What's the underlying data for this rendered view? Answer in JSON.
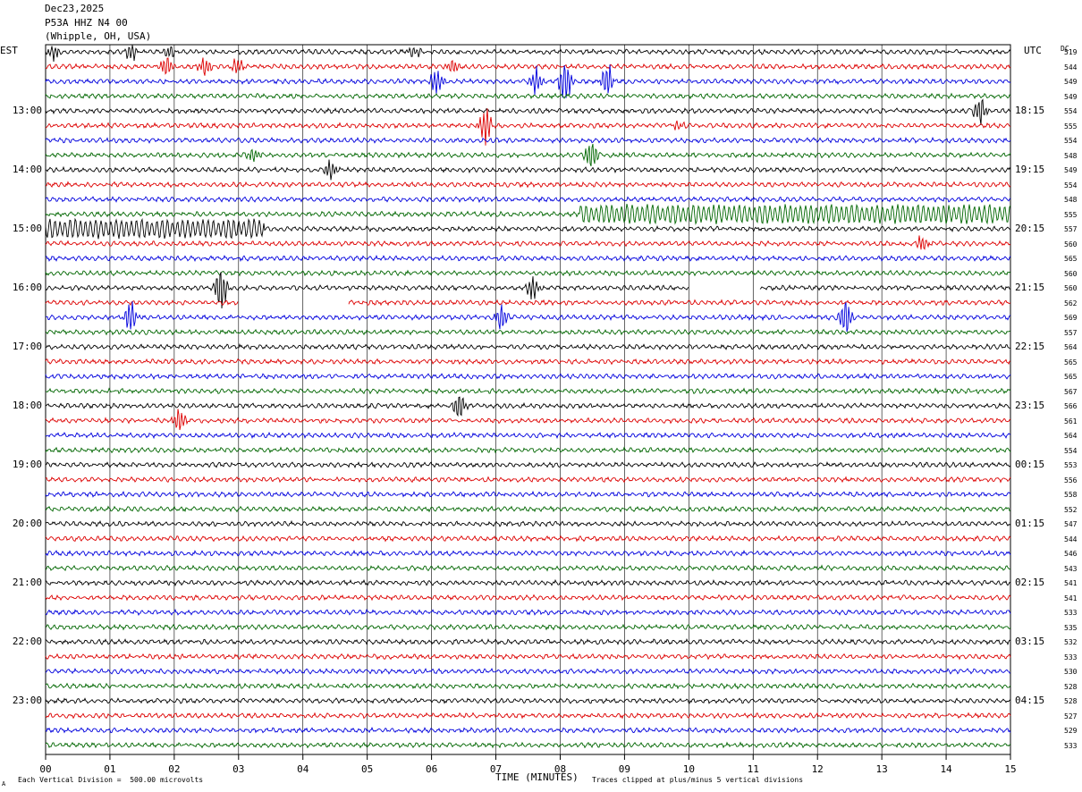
{
  "header": {
    "date": "Dec23,2025",
    "station": "P53A HHZ N4 00",
    "location": "(Whipple, OH, USA)"
  },
  "left_timezone": "EST",
  "right_timezone": "UTC",
  "dc_header": "DC",
  "footer": {
    "scale_note": "Each Vertical Division =  500.00 microvolts",
    "xlabel": "TIME (MINUTES)",
    "clip_note": "Traces clipped at plus/minus 5 vertical divisions",
    "corner_mark": "A"
  },
  "colors": {
    "trace_cycle": [
      "#000000",
      "#dd0000",
      "#0000dd",
      "#006600"
    ],
    "grid": "#000000",
    "background": "#ffffff"
  },
  "chart_data": {
    "type": "line",
    "title": "",
    "xlabel": "TIME (MINUTES)",
    "xlim": [
      0,
      15
    ],
    "x_ticks": [
      "00",
      "01",
      "02",
      "03",
      "04",
      "05",
      "06",
      "07",
      "08",
      "09",
      "10",
      "11",
      "12",
      "13",
      "14",
      "15"
    ],
    "trace_interval_minutes": 15,
    "left_hour_labels": [
      "13:00",
      "14:00",
      "15:00",
      "16:00",
      "17:00",
      "18:00",
      "19:00",
      "20:00",
      "21:00",
      "22:00",
      "23:00"
    ],
    "right_utc_labels": [
      "18:15",
      "19:15",
      "20:15",
      "21:15",
      "22:15",
      "23:15",
      "00:15",
      "01:15",
      "02:15",
      "03:15",
      "04:15"
    ],
    "dc_offsets": [
      519,
      544,
      549,
      549,
      554,
      555,
      554,
      548,
      549,
      554,
      548,
      555,
      557,
      560,
      565,
      560,
      560,
      562,
      569,
      557,
      564,
      565,
      565,
      567,
      566,
      561,
      564,
      554,
      553,
      556,
      558,
      552,
      547,
      544,
      546,
      543,
      541,
      541,
      533,
      535,
      532,
      533,
      530,
      528,
      528,
      527,
      529,
      533
    ],
    "events": [
      {
        "trace": 0,
        "minute": 0.1,
        "amp": 0.5
      },
      {
        "trace": 0,
        "minute": 1.3,
        "amp": 0.6
      },
      {
        "trace": 0,
        "minute": 1.9,
        "amp": 0.4
      },
      {
        "trace": 0,
        "minute": 5.7,
        "amp": 0.4
      },
      {
        "trace": 1,
        "minute": 1.85,
        "amp": 0.6
      },
      {
        "trace": 1,
        "minute": 2.45,
        "amp": 0.7
      },
      {
        "trace": 1,
        "minute": 2.95,
        "amp": 0.5
      },
      {
        "trace": 1,
        "minute": 6.3,
        "amp": 0.6
      },
      {
        "trace": 2,
        "minute": 6.05,
        "amp": 1.0
      },
      {
        "trace": 2,
        "minute": 7.6,
        "amp": 0.8
      },
      {
        "trace": 2,
        "minute": 8.05,
        "amp": 1.6
      },
      {
        "trace": 2,
        "minute": 8.7,
        "amp": 1.2
      },
      {
        "trace": 4,
        "minute": 14.5,
        "amp": 1.0
      },
      {
        "trace": 5,
        "minute": 6.8,
        "amp": 1.2
      },
      {
        "trace": 5,
        "minute": 9.8,
        "amp": 0.4
      },
      {
        "trace": 7,
        "minute": 3.2,
        "amp": 0.5
      },
      {
        "trace": 7,
        "minute": 8.45,
        "amp": 1.1
      },
      {
        "trace": 8,
        "minute": 4.4,
        "amp": 0.8
      },
      {
        "trace": 13,
        "minute": 13.6,
        "amp": 0.6
      },
      {
        "trace": 16,
        "minute": 2.7,
        "amp": 1.5
      },
      {
        "trace": 16,
        "minute": 7.55,
        "amp": 0.8
      },
      {
        "trace": 18,
        "minute": 1.3,
        "amp": 1.1
      },
      {
        "trace": 18,
        "minute": 7.05,
        "amp": 0.9
      },
      {
        "trace": 18,
        "minute": 12.4,
        "amp": 1.3
      },
      {
        "trace": 24,
        "minute": 6.4,
        "amp": 1.0
      },
      {
        "trace": 25,
        "minute": 2.05,
        "amp": 0.9
      }
    ],
    "long_oscillations": [
      {
        "trace": 11,
        "start_minute": 8.3,
        "end_minute": 15.0,
        "amp": 0.55
      },
      {
        "trace": 12,
        "start_minute": 0.0,
        "end_minute": 3.4,
        "amp": 0.55
      }
    ],
    "gaps": [
      {
        "trace": 16,
        "start_minute": 10.0,
        "end_minute": 11.1
      },
      {
        "trace": 17,
        "start_minute": 3.0,
        "end_minute": 4.7
      }
    ]
  }
}
